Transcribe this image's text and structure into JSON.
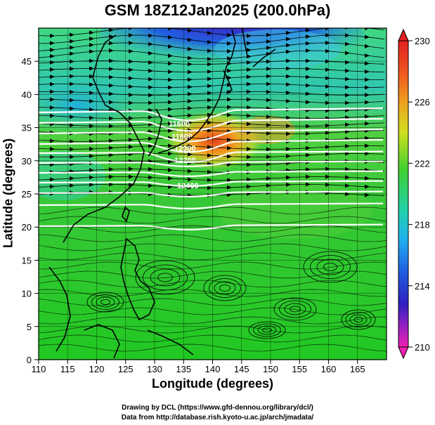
{
  "title": "GSM 18Z12Jan2025 (200.0hPa)",
  "x_axis": {
    "label": "Longitude (degrees)",
    "ticks": [
      "110",
      "115",
      "120",
      "125",
      "130",
      "135",
      "140",
      "145",
      "150",
      "155",
      "160",
      "165"
    ]
  },
  "y_axis": {
    "label": "Latitude  (degrees)",
    "ticks": [
      "0",
      "5",
      "10",
      "15",
      "20",
      "25",
      "30",
      "35",
      "40",
      "45"
    ]
  },
  "colorbar": {
    "labels": [
      "230",
      "226",
      "222",
      "218",
      "214",
      "210"
    ]
  },
  "contour_labels": [
    "11600",
    "11800",
    "12000",
    "12200",
    "12400"
  ],
  "credits": [
    "Drawing by DCL (https://www.gfd-dennou.org/library/dcl/)",
    "Data from http://database.rish.kyoto-u.ac.jp/arch/jmadata/"
  ],
  "colors": {
    "background_field": "#33cc33",
    "jet_core": "#e85a1a",
    "low_north": "#3333cc",
    "streamline": "#000000",
    "contour": "#ffffff"
  }
}
